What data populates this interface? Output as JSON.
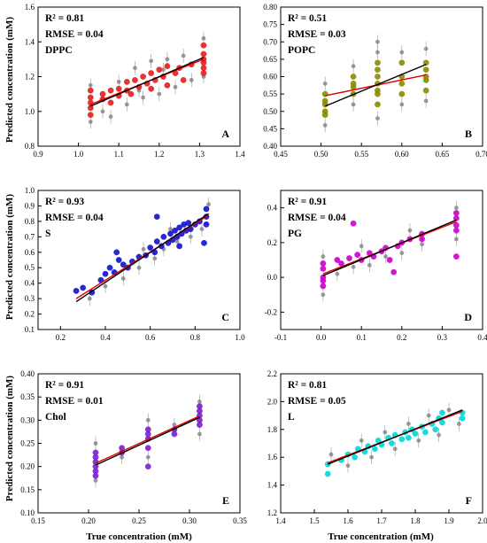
{
  "figure": {
    "ylabel": "Predicted concentration (mM)",
    "xlabel": "True concentration (mM)"
  },
  "chart_data": [
    {
      "id": "A",
      "type": "scatter",
      "label": "DPPC",
      "letter": "A",
      "r2": "R² = 0.81",
      "rmse": "RMSE = 0.04",
      "xlim": [
        0.9,
        1.4
      ],
      "ylim": [
        0.8,
        1.6
      ],
      "xticks": [
        "0.9",
        "1.0",
        "1.1",
        "1.2",
        "1.3",
        "1.4"
      ],
      "yticks": [
        "0.8",
        "1.0",
        "1.2",
        "1.4",
        "1.6"
      ],
      "color": "#e02020",
      "points": [
        [
          1.03,
          1.08
        ],
        [
          1.03,
          1.02
        ],
        [
          1.03,
          1.12
        ],
        [
          1.03,
          0.98
        ],
        [
          1.03,
          1.05
        ],
        [
          1.06,
          1.1
        ],
        [
          1.06,
          1.07
        ],
        [
          1.08,
          1.12
        ],
        [
          1.08,
          1.05
        ],
        [
          1.1,
          1.09
        ],
        [
          1.1,
          1.13
        ],
        [
          1.12,
          1.12
        ],
        [
          1.12,
          1.17
        ],
        [
          1.13,
          1.1
        ],
        [
          1.14,
          1.18
        ],
        [
          1.15,
          1.14
        ],
        [
          1.16,
          1.2
        ],
        [
          1.17,
          1.16
        ],
        [
          1.18,
          1.22
        ],
        [
          1.18,
          1.13
        ],
        [
          1.19,
          1.18
        ],
        [
          1.2,
          1.24
        ],
        [
          1.21,
          1.2
        ],
        [
          1.22,
          1.15
        ],
        [
          1.22,
          1.26
        ],
        [
          1.24,
          1.22
        ],
        [
          1.25,
          1.25
        ],
        [
          1.26,
          1.18
        ],
        [
          1.28,
          1.27
        ],
        [
          1.31,
          1.22
        ],
        [
          1.31,
          1.28
        ],
        [
          1.31,
          1.33
        ],
        [
          1.31,
          1.38
        ],
        [
          1.31,
          1.25
        ],
        [
          1.31,
          1.3
        ]
      ],
      "grey": [
        [
          1.03,
          0.94
        ],
        [
          1.03,
          1.15
        ],
        [
          1.06,
          1.0
        ],
        [
          1.08,
          0.97
        ],
        [
          1.1,
          1.17
        ],
        [
          1.12,
          1.04
        ],
        [
          1.14,
          1.25
        ],
        [
          1.16,
          1.08
        ],
        [
          1.18,
          1.29
        ],
        [
          1.2,
          1.1
        ],
        [
          1.22,
          1.3
        ],
        [
          1.24,
          1.14
        ],
        [
          1.26,
          1.32
        ],
        [
          1.28,
          1.18
        ],
        [
          1.31,
          1.42
        ],
        [
          1.31,
          1.2
        ],
        [
          1.15,
          1.12
        ],
        [
          1.21,
          1.24
        ]
      ],
      "fit_black": [
        [
          1.03,
          1.03
        ],
        [
          1.31,
          1.31
        ]
      ],
      "fit_red": [
        [
          1.03,
          1.04
        ],
        [
          1.31,
          1.3
        ]
      ]
    },
    {
      "id": "B",
      "type": "scatter",
      "label": "POPC",
      "letter": "B",
      "r2": "R² = 0.51",
      "rmse": "RMSE = 0.03",
      "xlim": [
        0.45,
        0.7
      ],
      "ylim": [
        0.4,
        0.8
      ],
      "xticks": [
        "0.45",
        "0.50",
        "0.55",
        "0.60",
        "0.65",
        "0.70"
      ],
      "yticks": [
        "0.40",
        "0.45",
        "0.50",
        "0.55",
        "0.60",
        "0.65",
        "0.70",
        "0.75",
        "0.80"
      ],
      "color": "#8a8a00",
      "points": [
        [
          0.505,
          0.53
        ],
        [
          0.505,
          0.5
        ],
        [
          0.505,
          0.55
        ],
        [
          0.505,
          0.52
        ],
        [
          0.505,
          0.49
        ],
        [
          0.54,
          0.58
        ],
        [
          0.54,
          0.55
        ],
        [
          0.54,
          0.6
        ],
        [
          0.54,
          0.57
        ],
        [
          0.57,
          0.64
        ],
        [
          0.57,
          0.58
        ],
        [
          0.57,
          0.55
        ],
        [
          0.57,
          0.6
        ],
        [
          0.57,
          0.52
        ],
        [
          0.57,
          0.62
        ],
        [
          0.57,
          0.56
        ],
        [
          0.6,
          0.55
        ],
        [
          0.6,
          0.6
        ],
        [
          0.6,
          0.58
        ],
        [
          0.6,
          0.64
        ],
        [
          0.63,
          0.59
        ],
        [
          0.63,
          0.62
        ],
        [
          0.63,
          0.56
        ],
        [
          0.63,
          0.64
        ],
        [
          0.63,
          0.6
        ]
      ],
      "grey": [
        [
          0.505,
          0.46
        ],
        [
          0.505,
          0.58
        ],
        [
          0.54,
          0.52
        ],
        [
          0.54,
          0.63
        ],
        [
          0.57,
          0.7
        ],
        [
          0.57,
          0.48
        ],
        [
          0.6,
          0.52
        ],
        [
          0.6,
          0.67
        ],
        [
          0.63,
          0.53
        ],
        [
          0.63,
          0.68
        ],
        [
          0.57,
          0.67
        ]
      ],
      "fit_black": [
        [
          0.505,
          0.515
        ],
        [
          0.63,
          0.635
        ]
      ],
      "fit_red": [
        [
          0.505,
          0.545
        ],
        [
          0.63,
          0.605
        ]
      ]
    },
    {
      "id": "C",
      "type": "scatter",
      "label": "S",
      "letter": "C",
      "r2": "R² = 0.93",
      "rmse": "RMSE = 0.04",
      "xlim": [
        0.1,
        1.0
      ],
      "ylim": [
        0.1,
        1.0
      ],
      "xticks": [
        "0.2",
        "0.4",
        "0.6",
        "0.8",
        "1.0"
      ],
      "yticks": [
        "0.1",
        "0.2",
        "0.3",
        "0.4",
        "0.5",
        "0.6",
        "0.7",
        "0.8",
        "0.9",
        "1.0"
      ],
      "color": "#1010d0",
      "points": [
        [
          0.27,
          0.35
        ],
        [
          0.3,
          0.37
        ],
        [
          0.34,
          0.34
        ],
        [
          0.38,
          0.42
        ],
        [
          0.4,
          0.46
        ],
        [
          0.42,
          0.5
        ],
        [
          0.44,
          0.47
        ],
        [
          0.46,
          0.55
        ],
        [
          0.48,
          0.52
        ],
        [
          0.5,
          0.5
        ],
        [
          0.52,
          0.54
        ],
        [
          0.55,
          0.57
        ],
        [
          0.58,
          0.58
        ],
        [
          0.6,
          0.63
        ],
        [
          0.62,
          0.6
        ],
        [
          0.63,
          0.67
        ],
        [
          0.65,
          0.64
        ],
        [
          0.66,
          0.7
        ],
        [
          0.68,
          0.66
        ],
        [
          0.69,
          0.72
        ],
        [
          0.7,
          0.68
        ],
        [
          0.71,
          0.74
        ],
        [
          0.72,
          0.7
        ],
        [
          0.73,
          0.76
        ],
        [
          0.74,
          0.72
        ],
        [
          0.75,
          0.78
        ],
        [
          0.76,
          0.74
        ],
        [
          0.77,
          0.79
        ],
        [
          0.78,
          0.75
        ],
        [
          0.8,
          0.78
        ],
        [
          0.82,
          0.8
        ],
        [
          0.85,
          0.83
        ],
        [
          0.85,
          0.88
        ],
        [
          0.85,
          0.78
        ],
        [
          0.84,
          0.66
        ],
        [
          0.63,
          0.83
        ],
        [
          0.73,
          0.64
        ],
        [
          0.45,
          0.6
        ]
      ],
      "grey": [
        [
          0.33,
          0.3
        ],
        [
          0.4,
          0.38
        ],
        [
          0.48,
          0.43
        ],
        [
          0.55,
          0.5
        ],
        [
          0.62,
          0.56
        ],
        [
          0.66,
          0.62
        ],
        [
          0.72,
          0.67
        ],
        [
          0.78,
          0.7
        ],
        [
          0.83,
          0.75
        ],
        [
          0.86,
          0.91
        ],
        [
          0.57,
          0.62
        ],
        [
          0.69,
          0.75
        ]
      ],
      "fit_black": [
        [
          0.27,
          0.28
        ],
        [
          0.86,
          0.85
        ]
      ],
      "fit_red": [
        [
          0.27,
          0.3
        ],
        [
          0.86,
          0.84
        ]
      ]
    },
    {
      "id": "D",
      "type": "scatter",
      "label": "PG",
      "letter": "D",
      "r2": "R² = 0.91",
      "rmse": "RMSE = 0.04",
      "xlim": [
        -0.1,
        0.4
      ],
      "ylim": [
        -0.3,
        0.5
      ],
      "xticks": [
        "-0.1",
        "0.0",
        "0.1",
        "0.2",
        "0.3",
        "0.4"
      ],
      "yticks": [
        "-0.2",
        "0.0",
        "0.2",
        "0.4"
      ],
      "color": "#cc00cc",
      "points": [
        [
          0.005,
          0.05
        ],
        [
          0.005,
          0.0
        ],
        [
          0.005,
          -0.05
        ],
        [
          0.005,
          0.08
        ],
        [
          0.005,
          -0.02
        ],
        [
          0.04,
          0.1
        ],
        [
          0.05,
          0.08
        ],
        [
          0.07,
          0.11
        ],
        [
          0.08,
          0.31
        ],
        [
          0.09,
          0.13
        ],
        [
          0.1,
          0.1
        ],
        [
          0.12,
          0.14
        ],
        [
          0.13,
          0.12
        ],
        [
          0.15,
          0.15
        ],
        [
          0.16,
          0.17
        ],
        [
          0.17,
          0.1
        ],
        [
          0.18,
          0.03
        ],
        [
          0.19,
          0.18
        ],
        [
          0.2,
          0.2
        ],
        [
          0.22,
          0.22
        ],
        [
          0.25,
          0.22
        ],
        [
          0.25,
          0.25
        ],
        [
          0.335,
          0.3
        ],
        [
          0.335,
          0.34
        ],
        [
          0.335,
          0.27
        ],
        [
          0.335,
          0.37
        ],
        [
          0.335,
          0.12
        ]
      ],
      "grey": [
        [
          0.005,
          -0.1
        ],
        [
          0.005,
          0.12
        ],
        [
          0.04,
          0.02
        ],
        [
          0.08,
          0.06
        ],
        [
          0.12,
          0.07
        ],
        [
          0.16,
          0.12
        ],
        [
          0.2,
          0.14
        ],
        [
          0.25,
          0.19
        ],
        [
          0.335,
          0.4
        ],
        [
          0.335,
          0.22
        ],
        [
          0.1,
          0.18
        ],
        [
          0.22,
          0.27
        ]
      ],
      "fit_black": [
        [
          0.005,
          0.01
        ],
        [
          0.335,
          0.33
        ]
      ],
      "fit_red": [
        [
          0.005,
          0.02
        ],
        [
          0.335,
          0.32
        ]
      ]
    },
    {
      "id": "E",
      "type": "scatter",
      "label": "Chol",
      "letter": "E",
      "r2": "R² = 0.91",
      "rmse": "RMSE = 0.01",
      "xlim": [
        0.15,
        0.35
      ],
      "ylim": [
        0.1,
        0.4
      ],
      "xticks": [
        "0.15",
        "0.20",
        "0.25",
        "0.30",
        "0.35"
      ],
      "yticks": [
        "0.10",
        "0.15",
        "0.20",
        "0.25",
        "0.30",
        "0.35",
        "0.40"
      ],
      "color": "#7a1fd0",
      "points": [
        [
          0.207,
          0.22
        ],
        [
          0.207,
          0.2
        ],
        [
          0.207,
          0.18
        ],
        [
          0.207,
          0.23
        ],
        [
          0.207,
          0.21
        ],
        [
          0.207,
          0.19
        ],
        [
          0.233,
          0.24
        ],
        [
          0.233,
          0.23
        ],
        [
          0.259,
          0.26
        ],
        [
          0.259,
          0.28
        ],
        [
          0.259,
          0.24
        ],
        [
          0.259,
          0.27
        ],
        [
          0.259,
          0.2
        ],
        [
          0.285,
          0.28
        ],
        [
          0.285,
          0.27
        ],
        [
          0.31,
          0.31
        ],
        [
          0.31,
          0.3
        ],
        [
          0.31,
          0.32
        ],
        [
          0.31,
          0.29
        ],
        [
          0.31,
          0.33
        ]
      ],
      "grey": [
        [
          0.207,
          0.17
        ],
        [
          0.207,
          0.25
        ],
        [
          0.233,
          0.22
        ],
        [
          0.259,
          0.22
        ],
        [
          0.259,
          0.3
        ],
        [
          0.285,
          0.29
        ],
        [
          0.31,
          0.27
        ],
        [
          0.31,
          0.34
        ]
      ],
      "fit_black": [
        [
          0.207,
          0.203
        ],
        [
          0.31,
          0.306
        ]
      ],
      "fit_red": [
        [
          0.207,
          0.207
        ],
        [
          0.31,
          0.309
        ]
      ]
    },
    {
      "id": "F",
      "type": "scatter",
      "label": "L",
      "letter": "F",
      "r2": "R² = 0.81",
      "rmse": "RMSE = 0.05",
      "xlim": [
        1.4,
        2.0
      ],
      "ylim": [
        1.2,
        2.2
      ],
      "xticks": [
        "1.4",
        "1.5",
        "1.6",
        "1.7",
        "1.8",
        "1.9",
        "2.0"
      ],
      "yticks": [
        "1.2",
        "1.4",
        "1.6",
        "1.8",
        "2.0",
        "2.2"
      ],
      "color": "#00d8d8",
      "points": [
        [
          1.54,
          1.55
        ],
        [
          1.54,
          1.48
        ],
        [
          1.58,
          1.58
        ],
        [
          1.6,
          1.62
        ],
        [
          1.62,
          1.6
        ],
        [
          1.63,
          1.66
        ],
        [
          1.65,
          1.64
        ],
        [
          1.66,
          1.68
        ],
        [
          1.68,
          1.66
        ],
        [
          1.69,
          1.72
        ],
        [
          1.7,
          1.69
        ],
        [
          1.72,
          1.74
        ],
        [
          1.73,
          1.7
        ],
        [
          1.74,
          1.76
        ],
        [
          1.76,
          1.73
        ],
        [
          1.77,
          1.78
        ],
        [
          1.78,
          1.74
        ],
        [
          1.79,
          1.8
        ],
        [
          1.8,
          1.77
        ],
        [
          1.82,
          1.82
        ],
        [
          1.83,
          1.78
        ],
        [
          1.85,
          1.84
        ],
        [
          1.86,
          1.8
        ],
        [
          1.87,
          1.88
        ],
        [
          1.88,
          1.92
        ],
        [
          1.88,
          1.85
        ],
        [
          1.94,
          1.92
        ],
        [
          1.94,
          1.88
        ]
      ],
      "grey": [
        [
          1.55,
          1.62
        ],
        [
          1.6,
          1.54
        ],
        [
          1.64,
          1.72
        ],
        [
          1.67,
          1.6
        ],
        [
          1.71,
          1.78
        ],
        [
          1.74,
          1.66
        ],
        [
          1.78,
          1.84
        ],
        [
          1.81,
          1.72
        ],
        [
          1.84,
          1.9
        ],
        [
          1.87,
          1.76
        ],
        [
          1.9,
          1.94
        ],
        [
          1.93,
          1.84
        ]
      ],
      "fit_black": [
        [
          1.54,
          1.55
        ],
        [
          1.94,
          1.94
        ]
      ],
      "fit_red": [
        [
          1.54,
          1.56
        ],
        [
          1.94,
          1.93
        ]
      ]
    }
  ]
}
